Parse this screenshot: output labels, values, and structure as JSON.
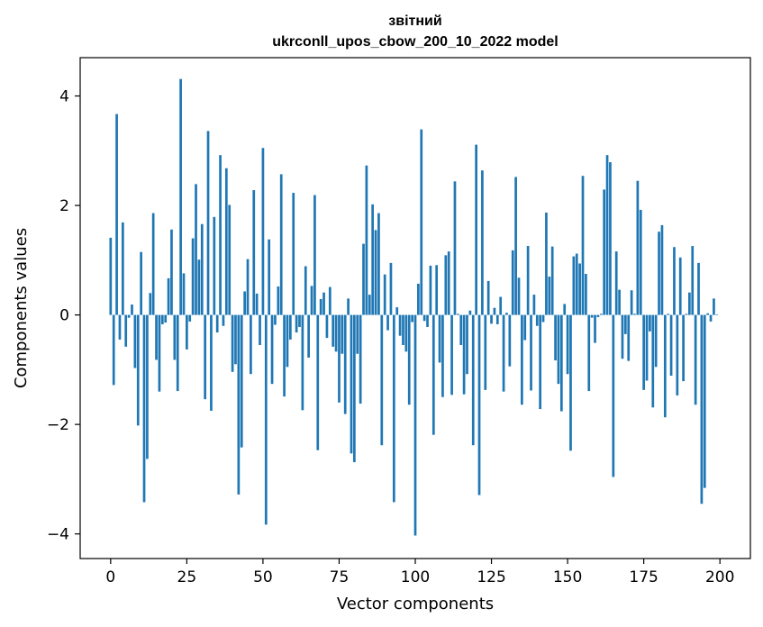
{
  "chart_data": {
    "type": "bar",
    "title_line1": "звітний",
    "title_line2": "ukrconll_upos_cbow_200_10_2022 model",
    "xlabel": "Vector components",
    "ylabel": "Components values",
    "xlim": [
      -10,
      210
    ],
    "ylim": [
      -4.45,
      4.7
    ],
    "xticks": [
      0,
      25,
      50,
      75,
      100,
      125,
      150,
      175,
      200
    ],
    "xtick_labels": [
      "0",
      "25",
      "50",
      "75",
      "100",
      "125",
      "150",
      "175",
      "200"
    ],
    "yticks": [
      -4,
      -2,
      0,
      2,
      4
    ],
    "ytick_labels": [
      "−4",
      "−2",
      "0",
      "2",
      "4"
    ],
    "bar_color": "#1f77b4",
    "grid": false,
    "values": [
      1.41,
      -1.28,
      3.67,
      -0.45,
      1.69,
      -0.58,
      -0.05,
      0.19,
      -0.97,
      -2.02,
      1.15,
      -3.42,
      -2.63,
      0.4,
      1.86,
      -0.82,
      -1.4,
      -0.17,
      -0.14,
      0.67,
      1.56,
      -0.82,
      -1.39,
      4.31,
      0.76,
      -0.63,
      -0.12,
      1.4,
      2.39,
      1.01,
      1.66,
      -1.54,
      3.36,
      -1.75,
      1.79,
      -0.32,
      2.92,
      -0.2,
      2.68,
      2.01,
      -1.04,
      -0.9,
      -3.28,
      -2.42,
      0.43,
      1.02,
      -1.08,
      2.28,
      0.39,
      -0.55,
      3.05,
      -3.83,
      1.38,
      -1.26,
      -0.18,
      0.52,
      2.57,
      -1.49,
      -0.95,
      -0.45,
      2.23,
      -0.32,
      -0.22,
      -1.74,
      0.89,
      -0.78,
      0.53,
      2.19,
      -2.47,
      0.29,
      0.41,
      -0.42,
      0.51,
      -0.58,
      -0.67,
      -1.6,
      -0.71,
      -1.81,
      0.3,
      -2.53,
      -2.69,
      -0.71,
      -1.62,
      1.3,
      2.73,
      0.37,
      2.02,
      1.55,
      1.86,
      -2.38,
      0.74,
      -0.28,
      0.95,
      -3.42,
      0.14,
      -0.38,
      -0.55,
      -0.67,
      -1.64,
      -0.13,
      -4.03,
      0.57,
      3.39,
      -0.11,
      -0.22,
      0.9,
      -2.19,
      0.91,
      -0.87,
      -1.5,
      1.09,
      1.16,
      -1.46,
      2.44,
      0.02,
      -0.55,
      -1.45,
      -1.08,
      0.08,
      -2.38,
      3.11,
      -3.29,
      2.64,
      -1.37,
      0.62,
      -0.16,
      0.13,
      -0.17,
      0.33,
      -1.4,
      0.04,
      -0.94,
      1.18,
      2.52,
      0.68,
      -1.64,
      -0.46,
      1.26,
      -1.38,
      0.37,
      -0.2,
      -1.72,
      -0.13,
      1.87,
      0.7,
      1.25,
      -0.83,
      -1.26,
      -1.76,
      0.2,
      -1.08,
      -2.48,
      1.07,
      1.12,
      0.94,
      2.54,
      0.75,
      -1.39,
      -0.05,
      -0.51,
      -0.04,
      0.02,
      2.29,
      2.92,
      2.79,
      -2.96,
      1.16,
      0.46,
      -0.8,
      -0.35,
      -0.84,
      0.45,
      0.02,
      2.45,
      1.92,
      -1.37,
      -1.2,
      -0.3,
      -1.69,
      -0.95,
      1.52,
      1.64,
      -1.87,
      0.02,
      -1.11,
      1.24,
      -1.47,
      1.05,
      -1.21,
      0.02,
      0.41,
      1.26,
      -1.64,
      0.95,
      -3.45,
      -3.16,
      0.03,
      -0.12,
      0.3,
      0.01
    ]
  }
}
